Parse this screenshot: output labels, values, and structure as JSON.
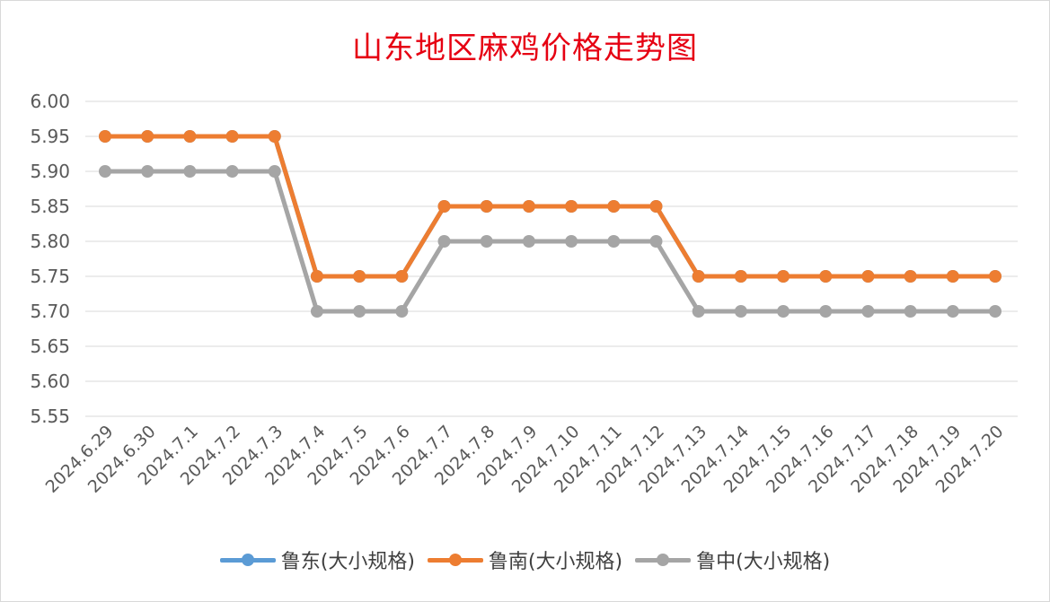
{
  "chart_data": {
    "type": "line",
    "title": "山东地区麻鸡价格走势图",
    "categories": [
      "2024.6.29",
      "2024.6.30",
      "2024.7.1",
      "2024.7.2",
      "2024.7.3",
      "2024.7.4",
      "2024.7.5",
      "2024.7.6",
      "2024.7.7",
      "2024.7.8",
      "2024.7.9",
      "2024.7.10",
      "2024.7.11",
      "2024.7.12",
      "2024.7.13",
      "2024.7.14",
      "2024.7.15",
      "2024.7.16",
      "2024.7.17",
      "2024.7.18",
      "2024.7.19",
      "2024.7.20"
    ],
    "yticks": [
      "5.55",
      "5.60",
      "5.65",
      "5.70",
      "5.75",
      "5.80",
      "5.85",
      "5.90",
      "5.95",
      "6.00"
    ],
    "ylim": [
      5.55,
      6.0
    ],
    "grid": true,
    "legend_position": "bottom",
    "series": [
      {
        "name": "鲁东(大小规格)",
        "color": "#5b9bd5",
        "values": [
          5.95,
          5.95,
          5.95,
          5.95,
          5.95,
          5.75,
          5.75,
          5.75,
          5.85,
          5.85,
          5.85,
          5.85,
          5.85,
          5.85,
          5.75,
          5.75,
          5.75,
          5.75,
          5.75,
          5.75,
          5.75,
          5.75
        ]
      },
      {
        "name": "鲁南(大小规格)",
        "color": "#ed7d31",
        "values": [
          5.95,
          5.95,
          5.95,
          5.95,
          5.95,
          5.75,
          5.75,
          5.75,
          5.85,
          5.85,
          5.85,
          5.85,
          5.85,
          5.85,
          5.75,
          5.75,
          5.75,
          5.75,
          5.75,
          5.75,
          5.75,
          5.75
        ]
      },
      {
        "name": "鲁中(大小规格)",
        "color": "#a5a5a5",
        "values": [
          5.9,
          5.9,
          5.9,
          5.9,
          5.9,
          5.7,
          5.7,
          5.7,
          5.8,
          5.8,
          5.8,
          5.8,
          5.8,
          5.8,
          5.7,
          5.7,
          5.7,
          5.7,
          5.7,
          5.7,
          5.7,
          5.7
        ]
      }
    ]
  }
}
